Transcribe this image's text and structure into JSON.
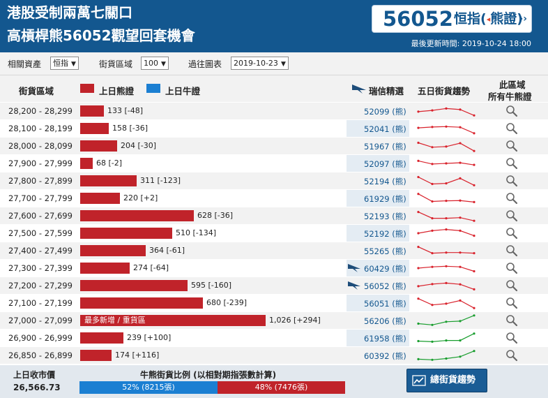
{
  "header": {
    "headline_1": "港股受制兩萬七關口",
    "headline_2": "高槓桿熊56052觀望回套機會",
    "code": "56052",
    "underlying_left": "恒指(",
    "underlying_arrow": "◂",
    "underlying_right": "熊證)",
    "arrow": "››",
    "updated": "最後更新時間: 2019-10-24 18:00"
  },
  "filters": {
    "asset_label": "相關資產",
    "asset_value": "恒指",
    "zone_label": "街貨區域",
    "zone_value": "100",
    "history_label": "過往圖表",
    "history_value": "2019-10-23"
  },
  "columns": {
    "zone": "街貨區域",
    "legend_bear": "上日熊證",
    "legend_bull": "上日牛證",
    "featured": "瑞信精選",
    "trend": "五日街貨趨勢",
    "all_line1": "此區域",
    "all_line2": "所有牛熊證"
  },
  "colors": {
    "bear": "#c0232a",
    "bull": "#1b7fd2",
    "trend_down": "#d9232d",
    "trend_up": "#1a9e2f"
  },
  "max_value": 1026,
  "rows": [
    {
      "range": "28,200 - 28,299",
      "value": 133,
      "label": "133 [-48]",
      "code": "52099 (熊)",
      "logo": false,
      "shade": false,
      "trend": "down",
      "t": [
        0.45,
        0.55,
        0.7,
        0.62,
        0.15
      ]
    },
    {
      "range": "28,100 - 28,199",
      "value": 158,
      "label": "158 [-36]",
      "code": "52041 (熊)",
      "logo": false,
      "shade": true,
      "trend": "down",
      "t": [
        0.55,
        0.62,
        0.65,
        0.6,
        0.12
      ]
    },
    {
      "range": "28,000 - 28,099",
      "value": 204,
      "label": "204 [-30]",
      "code": "51967 (熊)",
      "logo": false,
      "shade": false,
      "trend": "down",
      "t": [
        0.75,
        0.4,
        0.45,
        0.72,
        0.1
      ]
    },
    {
      "range": "27,900 - 27,999",
      "value": 68,
      "label": "68 [-2]",
      "code": "52097 (熊)",
      "logo": false,
      "shade": true,
      "trend": "down",
      "t": [
        0.7,
        0.45,
        0.5,
        0.55,
        0.38
      ]
    },
    {
      "range": "27,800 - 27,899",
      "value": 311,
      "label": "311 [-123]",
      "code": "52194 (熊)",
      "logo": false,
      "shade": false,
      "trend": "down",
      "t": [
        0.8,
        0.25,
        0.3,
        0.7,
        0.15
      ]
    },
    {
      "range": "27,700 - 27,799",
      "value": 220,
      "label": "220 [+2]",
      "code": "61929 (熊)",
      "logo": false,
      "shade": true,
      "trend": "down",
      "t": [
        0.85,
        0.25,
        0.3,
        0.32,
        0.2
      ]
    },
    {
      "range": "27,600 - 27,699",
      "value": 628,
      "label": "628 [-36]",
      "code": "52193 (熊)",
      "logo": false,
      "shade": false,
      "trend": "down",
      "t": [
        0.8,
        0.3,
        0.3,
        0.35,
        0.1
      ]
    },
    {
      "range": "27,500 - 27,599",
      "value": 510,
      "label": "510 [-134]",
      "code": "52192 (熊)",
      "logo": false,
      "shade": true,
      "trend": "down",
      "t": [
        0.5,
        0.7,
        0.8,
        0.7,
        0.3
      ]
    },
    {
      "range": "27,400 - 27,499",
      "value": 364,
      "label": "364 [-61]",
      "code": "55265 (熊)",
      "logo": false,
      "shade": false,
      "trend": "down",
      "t": [
        0.8,
        0.3,
        0.35,
        0.35,
        0.3
      ]
    },
    {
      "range": "27,300 - 27,399",
      "value": 274,
      "label": "274 [-64]",
      "code": "60429 (熊)",
      "logo": true,
      "shade": true,
      "trend": "down",
      "t": [
        0.5,
        0.6,
        0.65,
        0.6,
        0.25
      ]
    },
    {
      "range": "27,200 - 27,299",
      "value": 595,
      "label": "595 [-160]",
      "code": "56052 (熊)",
      "logo": true,
      "shade": false,
      "trend": "down",
      "t": [
        0.45,
        0.62,
        0.7,
        0.6,
        0.2
      ]
    },
    {
      "range": "27,100 - 27,199",
      "value": 680,
      "label": "680 [-239]",
      "code": "56051 (熊)",
      "logo": false,
      "shade": true,
      "trend": "down",
      "t": [
        0.85,
        0.35,
        0.45,
        0.7,
        0.1
      ]
    },
    {
      "range": "27,000 - 27,099",
      "value": 1026,
      "label": "1,026 [+294]",
      "code": "56206 (熊)",
      "logo": false,
      "shade": false,
      "trend": "up",
      "inbar": "最多新增 / 重貨區",
      "t": [
        0.25,
        0.15,
        0.4,
        0.45,
        0.9
      ]
    },
    {
      "range": "26,900 - 26,999",
      "value": 239,
      "label": "239 [+100]",
      "code": "61958 (熊)",
      "logo": false,
      "shade": true,
      "trend": "up",
      "t": [
        0.25,
        0.2,
        0.3,
        0.3,
        0.85
      ]
    },
    {
      "range": "26,850 - 26,899",
      "value": 174,
      "label": "174 [+116]",
      "code": "60392 (熊)",
      "logo": false,
      "shade": false,
      "trend": "up",
      "t": [
        0.2,
        0.15,
        0.25,
        0.4,
        0.85
      ]
    }
  ],
  "footer": {
    "prev_close_label": "上日收市價",
    "prev_close_value": "26,566.73",
    "ratio_label": "牛熊街貨比例 (以相對期指張數計算)",
    "bull_percent": 52,
    "bull_text": "52% (8215張)",
    "bear_text": "48% (7476張)",
    "trend_button": "總街貨趨勢"
  }
}
